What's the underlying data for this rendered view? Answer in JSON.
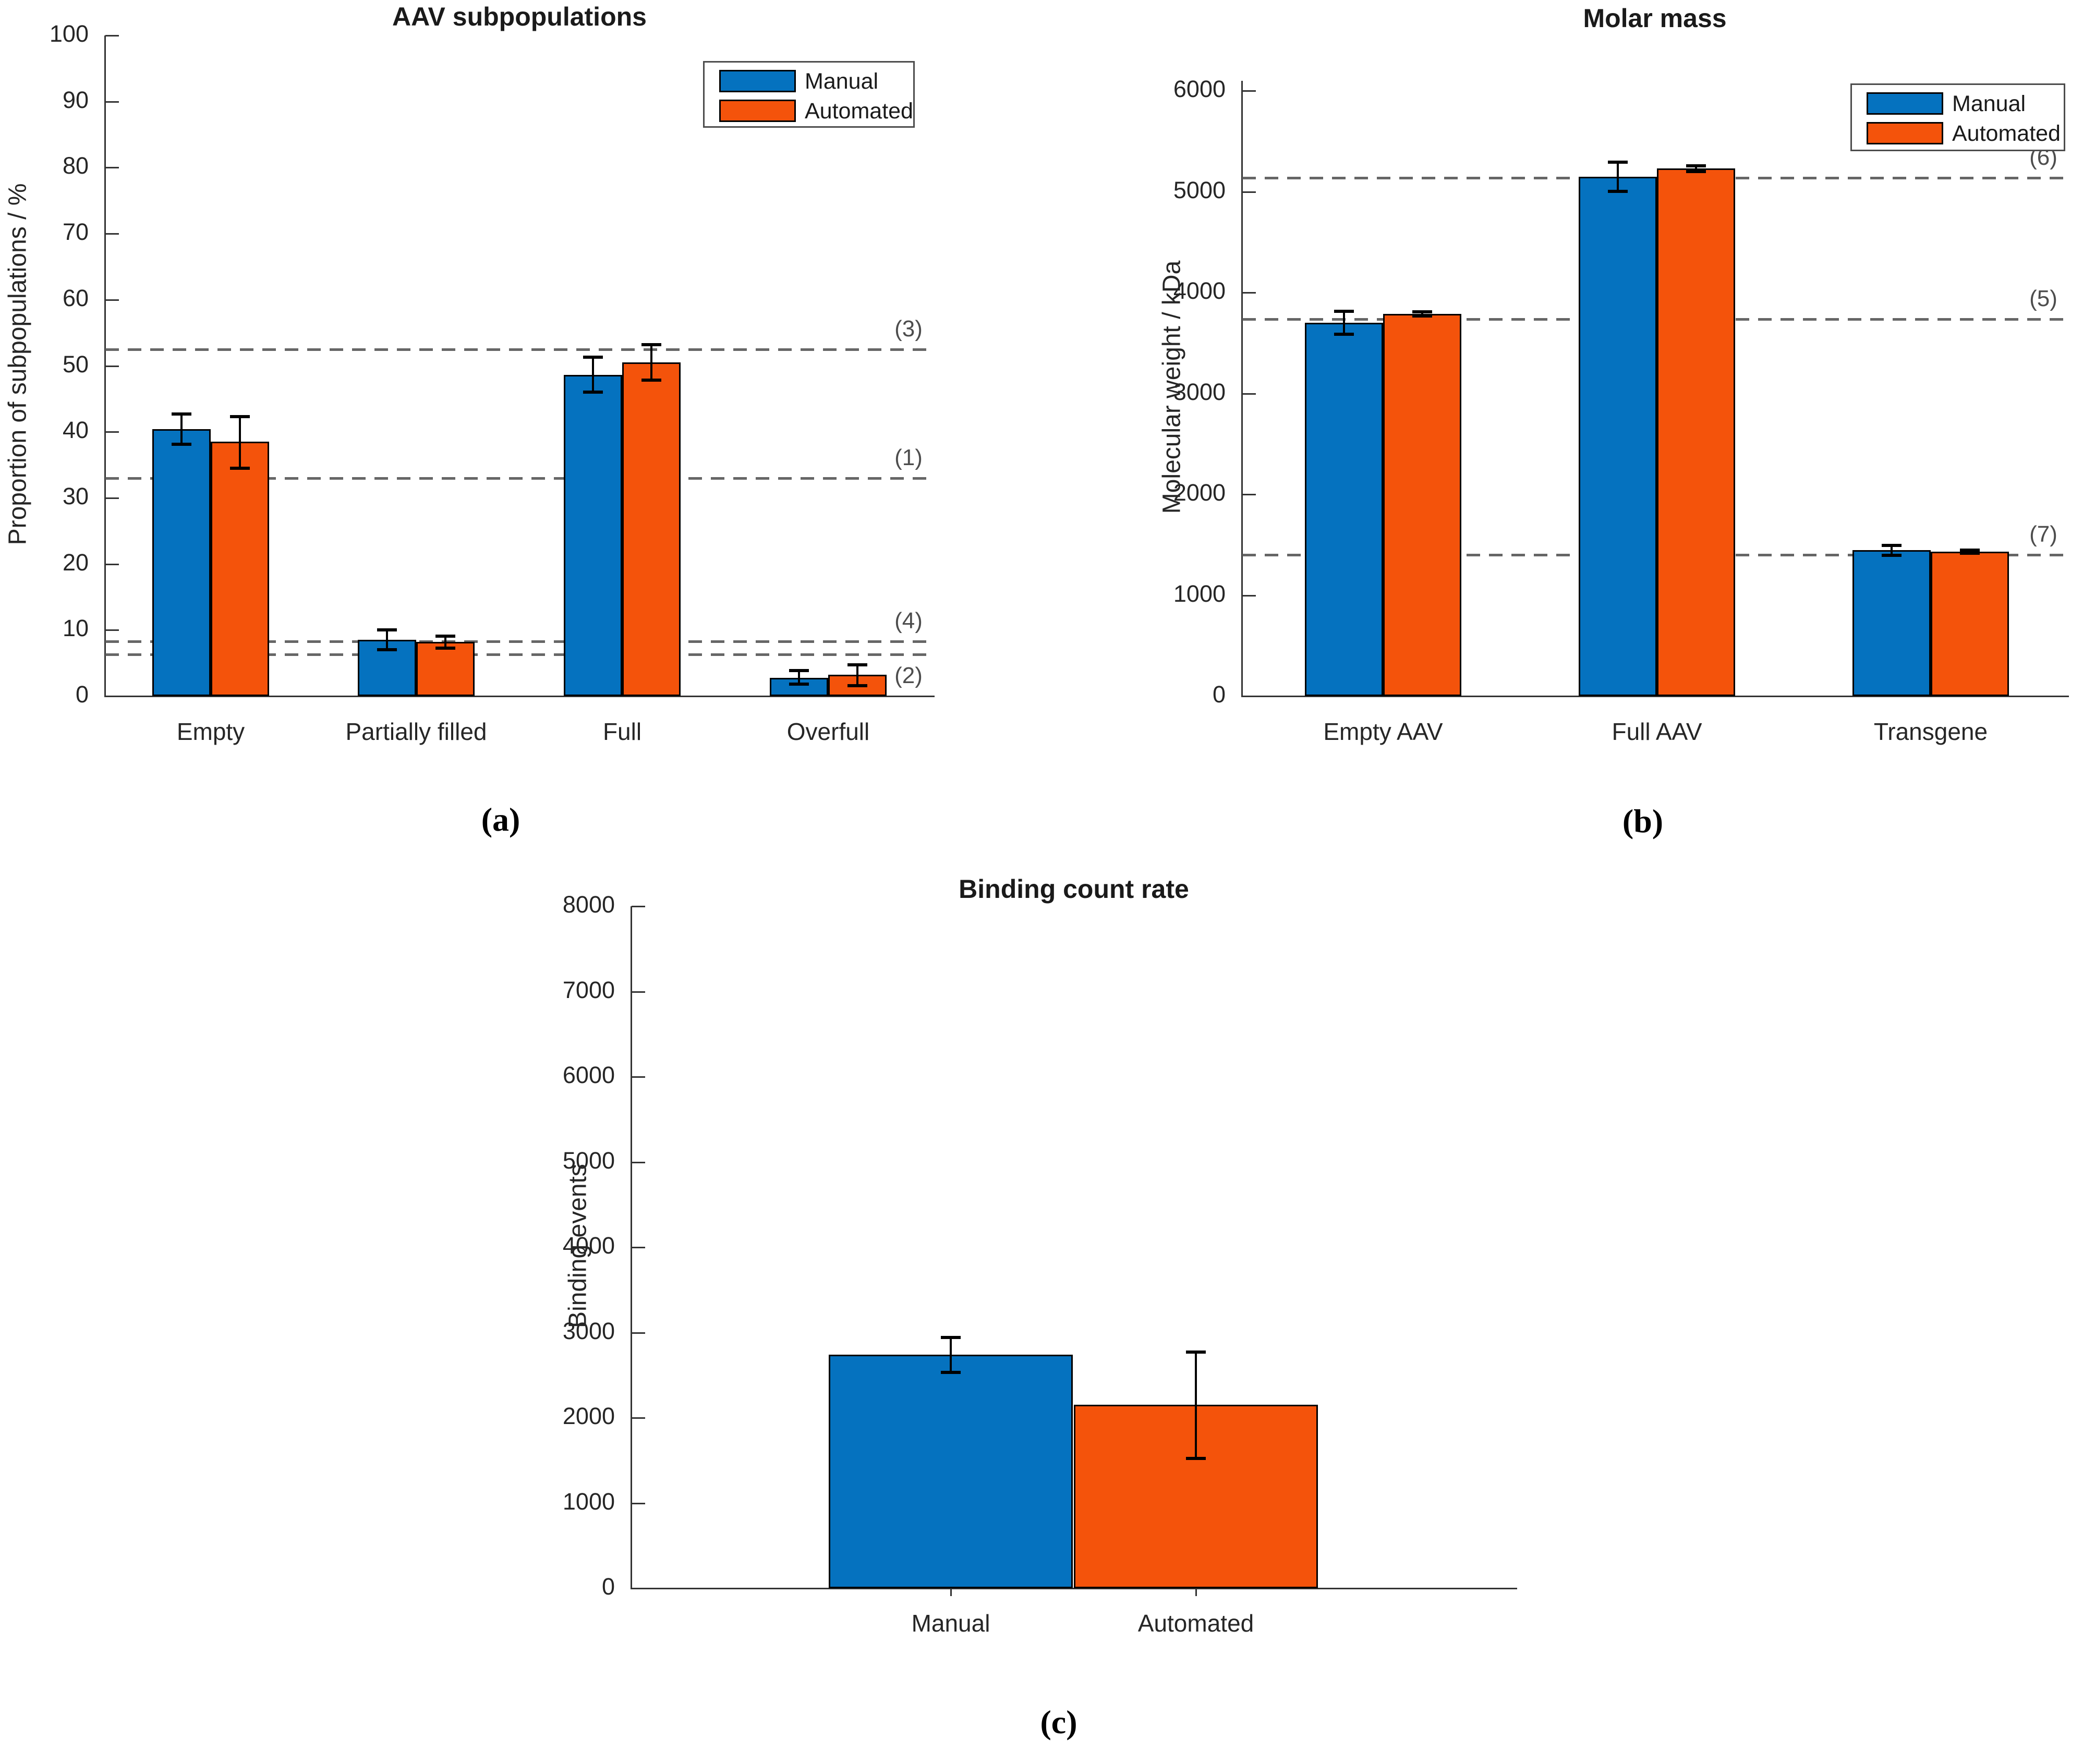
{
  "figure": {
    "panels": [
      "a",
      "b",
      "c"
    ]
  },
  "colors": {
    "manual": "#0572BF",
    "automated": "#F4530B",
    "reference_line": "#666666",
    "axis": "#333333",
    "error_bar": "#000000"
  },
  "chart_data": [
    {
      "type": "bar",
      "title": "AAV subpopulations",
      "ylabel": "Proportion of subpopulations / %",
      "ylim": [
        0,
        100
      ],
      "ytick_step": 10,
      "grid": false,
      "legend_position": "top-right",
      "caption": "(a)",
      "categories": [
        "Empty",
        "Partially filled",
        "Full",
        "Overfull"
      ],
      "series": [
        {
          "name": "Manual",
          "color_key": "manual",
          "values": [
            40.4,
            8.5,
            48.6,
            2.8
          ],
          "errors": [
            [
              38.1,
              42.7
            ],
            [
              7.0,
              10.0
            ],
            [
              46.0,
              51.3
            ],
            [
              1.8,
              3.9
            ]
          ]
        },
        {
          "name": "Automated",
          "color_key": "automated",
          "values": [
            38.5,
            8.2,
            50.5,
            3.2
          ],
          "errors": [
            [
              34.5,
              42.3
            ],
            [
              7.3,
              9.1
            ],
            [
              47.8,
              53.2
            ],
            [
              1.6,
              4.7
            ]
          ]
        }
      ],
      "reference_lines": [
        {
          "label": "(3)",
          "value": 52.5,
          "label_side": "above"
        },
        {
          "label": "(1)",
          "value": 33.0,
          "label_side": "above"
        },
        {
          "label": "(4)",
          "value": 8.3,
          "label_side": "above"
        },
        {
          "label": "(2)",
          "value": 6.3,
          "label_side": "below"
        }
      ]
    },
    {
      "type": "bar",
      "title": "Molar mass",
      "ylabel": "Molecular weight / kDa",
      "ylim": [
        0,
        6100
      ],
      "ytick_step": 1000,
      "ytick_max": 6000,
      "grid": false,
      "legend_position": "top-right",
      "caption": "(b)",
      "categories": [
        "Empty AAV",
        "Full AAV",
        "Transgene"
      ],
      "series": [
        {
          "name": "Manual",
          "color_key": "manual",
          "values": [
            3700,
            5150,
            1445
          ],
          "errors": [
            [
              3590,
              3815
            ],
            [
              5005,
              5295
            ],
            [
              1395,
              1495
            ]
          ]
        },
        {
          "name": "Automated",
          "color_key": "automated",
          "values": [
            3790,
            5230,
            1430
          ],
          "errors": [
            [
              3770,
              3810
            ],
            [
              5200,
              5255
            ],
            [
              1418,
              1445
            ]
          ]
        }
      ],
      "reference_lines": [
        {
          "label": "(6)",
          "value": 5140,
          "label_side": "above"
        },
        {
          "label": "(5)",
          "value": 3740,
          "label_side": "above"
        },
        {
          "label": "(7)",
          "value": 1400,
          "label_side": "above"
        }
      ]
    },
    {
      "type": "bar",
      "title": "Binding count rate",
      "ylabel": "Binding events",
      "ylim": [
        0,
        8000
      ],
      "ytick_step": 1000,
      "grid": false,
      "caption": "(c)",
      "categories": [
        "Manual",
        "Automated"
      ],
      "values": [
        2740,
        2150
      ],
      "errors": [
        [
          2530,
          2940
        ],
        [
          1520,
          2770
        ]
      ],
      "bar_color_keys": [
        "manual",
        "automated"
      ]
    }
  ]
}
